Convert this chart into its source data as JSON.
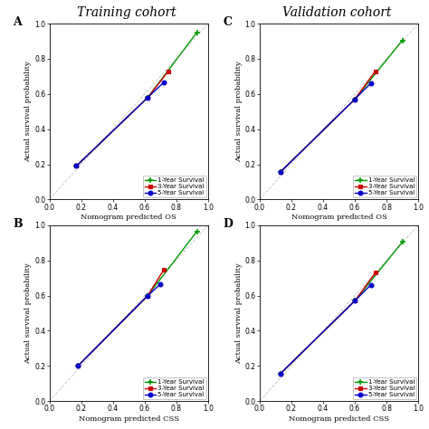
{
  "title_left": "Training cohort",
  "title_right": "Validation cohort",
  "panels": [
    {
      "label": "A",
      "xlabel": "Nomogram predicted OS",
      "ylabel": "Actual survival probability",
      "series": [
        {
          "name": "1-Year Survival",
          "color": "#009900",
          "x": [
            0.17,
            0.62,
            0.93
          ],
          "y": [
            0.19,
            0.58,
            0.95
          ],
          "marker": "+"
        },
        {
          "name": "3-Year Survival",
          "color": "#cc0000",
          "x": [
            0.17,
            0.62,
            0.75
          ],
          "y": [
            0.19,
            0.58,
            0.73
          ],
          "marker": "s"
        },
        {
          "name": "5-Year Survival",
          "color": "#0000cc",
          "x": [
            0.17,
            0.62,
            0.72
          ],
          "y": [
            0.19,
            0.58,
            0.665
          ],
          "marker": "o"
        }
      ]
    },
    {
      "label": "C",
      "xlabel": "Nomogram predicted OS",
      "ylabel": "Actual survival probability",
      "series": [
        {
          "name": "1-Year Survival",
          "color": "#009900",
          "x": [
            0.13,
            0.6,
            0.9
          ],
          "y": [
            0.155,
            0.57,
            0.905
          ],
          "marker": "+"
        },
        {
          "name": "3-Year Survival",
          "color": "#cc0000",
          "x": [
            0.13,
            0.6,
            0.73
          ],
          "y": [
            0.155,
            0.57,
            0.73
          ],
          "marker": "s"
        },
        {
          "name": "5-Year Survival",
          "color": "#0000cc",
          "x": [
            0.13,
            0.6,
            0.7
          ],
          "y": [
            0.155,
            0.57,
            0.66
          ],
          "marker": "o"
        }
      ]
    },
    {
      "label": "B",
      "xlabel": "Nomogram predicted CSS",
      "ylabel": "Actual survival probability",
      "series": [
        {
          "name": "1-Year Survival",
          "color": "#009900",
          "x": [
            0.18,
            0.62,
            0.93
          ],
          "y": [
            0.2,
            0.6,
            0.965
          ],
          "marker": "+"
        },
        {
          "name": "3-Year Survival",
          "color": "#cc0000",
          "x": [
            0.18,
            0.62,
            0.72
          ],
          "y": [
            0.2,
            0.6,
            0.745
          ],
          "marker": "s"
        },
        {
          "name": "5-Year Survival",
          "color": "#0000cc",
          "x": [
            0.18,
            0.62,
            0.7
          ],
          "y": [
            0.2,
            0.6,
            0.665
          ],
          "marker": "o"
        }
      ]
    },
    {
      "label": "D",
      "xlabel": "Nomogram predicted CSS",
      "ylabel": "Actual survival probability",
      "series": [
        {
          "name": "1-Year Survival",
          "color": "#009900",
          "x": [
            0.13,
            0.6,
            0.9
          ],
          "y": [
            0.155,
            0.57,
            0.905
          ],
          "marker": "+"
        },
        {
          "name": "3-Year Survival",
          "color": "#cc0000",
          "x": [
            0.13,
            0.6,
            0.73
          ],
          "y": [
            0.155,
            0.57,
            0.73
          ],
          "marker": "s"
        },
        {
          "name": "5-Year Survival",
          "color": "#0000cc",
          "x": [
            0.13,
            0.6,
            0.7
          ],
          "y": [
            0.155,
            0.57,
            0.66
          ],
          "marker": "o"
        }
      ]
    }
  ],
  "xlim": [
    0.0,
    1.0
  ],
  "ylim": [
    0.0,
    1.0
  ],
  "xticks": [
    0.0,
    0.2,
    0.4,
    0.6,
    0.8,
    1.0
  ],
  "yticks": [
    0.0,
    0.2,
    0.4,
    0.6,
    0.8,
    1.0
  ],
  "tick_fontsize": 5.5,
  "label_fontsize": 6.0,
  "legend_fontsize": 5.0,
  "panel_label_fontsize": 9,
  "title_fontsize": 10,
  "line_width": 1.0,
  "diag_color": "#cccccc",
  "diag_style": "--",
  "diag_lw": 0.7
}
